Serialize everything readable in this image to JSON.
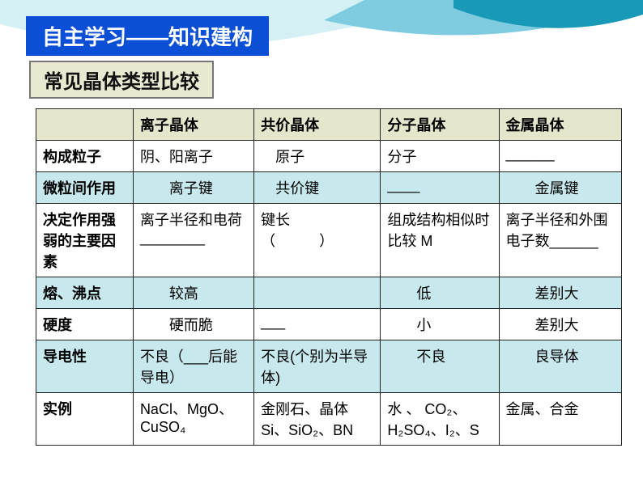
{
  "layout": {
    "title_bg": "#0b4fd6",
    "title_color": "#ffffff",
    "subtitle_bg": "#e9e9d2",
    "subtitle_color": "#111111",
    "header_row_bg": "#e6e6cc",
    "alt_row_bg": "#c7e9ee",
    "border_color": "#222222",
    "wave_color_light": "#d5f0f5",
    "wave_color_mid": "#7fcbe0",
    "wave_color_dark": "#1899b8"
  },
  "title": "自主学习——知识建构",
  "subtitle": "常见晶体类型比较",
  "table": {
    "columns": [
      "",
      "离子晶体",
      "共价晶体",
      "分子晶体",
      "金属晶体"
    ],
    "rows": [
      {
        "alt": false,
        "label": "构成粒子",
        "cells": [
          "阴、阳离子",
          "　原子",
          "分子",
          "______"
        ]
      },
      {
        "alt": true,
        "label": "微粒间作用",
        "cells": [
          "　　离子键",
          "　共价键",
          "____",
          "　　金属键"
        ]
      },
      {
        "alt": false,
        "label": "决定作用强弱的主要因素",
        "cells": [
          "离子半径和电荷________",
          "键长　　（　　　）",
          "组成结构相似时比较 M",
          "离子半径和外围电子数______"
        ]
      },
      {
        "alt": true,
        "label": "熔、沸点",
        "cells": [
          "　　较高",
          "",
          "　　低",
          "　　差别大"
        ]
      },
      {
        "alt": false,
        "label": "硬度",
        "cells": [
          "　　硬而脆",
          "___",
          "　　小",
          "　　差别大"
        ]
      },
      {
        "alt": true,
        "label": "导电性",
        "cells": [
          "不良（___后能导电）",
          "不良(个别为半导体)",
          "　　不良",
          "　　良导体"
        ]
      },
      {
        "alt": false,
        "label": "实例",
        "cells": [
          "NaCl、MgO、CuSO₄",
          "金刚石、晶体Si、SiO₂、BN",
          "水 、 CO₂、H₂SO₄、I₂、S",
          "金属、合金"
        ]
      }
    ]
  }
}
